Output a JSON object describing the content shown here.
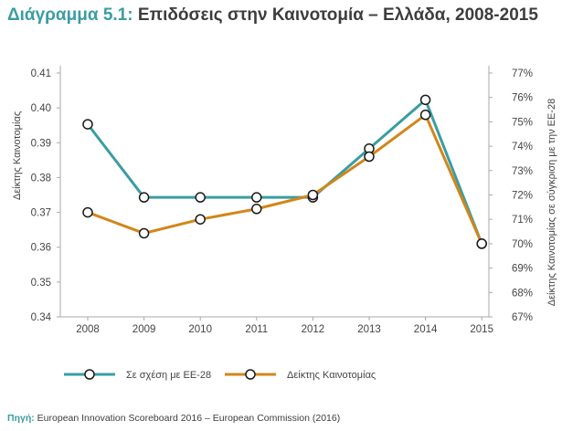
{
  "header": {
    "title_lead": "Διάγραμμα 5.1:",
    "title_rest": "Επιδόσεις στην Καινοτομία – Ελλάδα, 2008-2015"
  },
  "footer": {
    "source_label": "Πηγή:",
    "source_text": "European Innovation Scoreboard 2016 – European Commission (2016)"
  },
  "colors": {
    "teal": "#3a9da3",
    "orange": "#d2861a",
    "axis": "#aaaaaa"
  },
  "chart_data": {
    "type": "line",
    "title": "Επιδόσεις στην Καινοτομία – Ελλάδα, 2008-2015",
    "categories": [
      "2008",
      "2009",
      "2010",
      "2011",
      "2012",
      "2013",
      "2014",
      "2015"
    ],
    "y_left": {
      "label": "Δείκτης Καινοτομίας",
      "ylim": [
        0.34,
        0.41
      ],
      "ticks": [
        0.34,
        0.35,
        0.36,
        0.37,
        0.38,
        0.39,
        0.4,
        0.41
      ],
      "tick_labels": [
        "0.34",
        "0.35",
        "0.36",
        "0.37",
        "0.38",
        "0.39",
        "0.40",
        "0.41"
      ]
    },
    "y_right": {
      "label": "Δείκτης Καινοτομίας σε σύγκριση με την ΕΕ-28",
      "ylim": [
        67,
        77
      ],
      "ticks": [
        67,
        68,
        69,
        70,
        71,
        72,
        73,
        74,
        75,
        76,
        77
      ],
      "tick_labels": [
        "67%",
        "68%",
        "69%",
        "70%",
        "71%",
        "72%",
        "73%",
        "74%",
        "75%",
        "76%",
        "77%"
      ]
    },
    "series": [
      {
        "name": "Σε σχέση με ΕΕ-28",
        "axis": "right",
        "color": "#3a9da3",
        "values": [
          74.9,
          71.9,
          71.9,
          71.9,
          71.9,
          73.9,
          75.9,
          70.0
        ]
      },
      {
        "name": "Δείκτης Καινοτομίας",
        "axis": "left",
        "color": "#d2861a",
        "values": [
          0.37,
          0.364,
          0.368,
          0.371,
          0.375,
          0.386,
          0.398,
          0.361
        ]
      }
    ],
    "legend": "bottom",
    "grid": false
  }
}
